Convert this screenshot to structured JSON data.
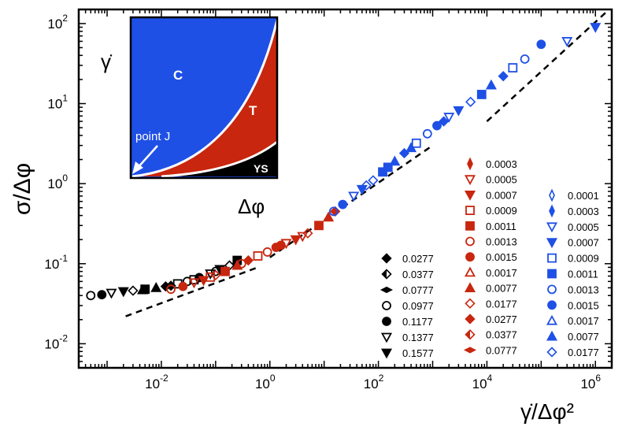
{
  "chart_data": {
    "type": "scatter",
    "x_scale": "log",
    "y_scale": "log",
    "xlim": [
      0.0003,
      2000000
    ],
    "ylim": [
      0.005,
      150
    ],
    "x_ticks": [
      {
        "value": 0.01,
        "base": "10",
        "exp": "-2"
      },
      {
        "value": 1,
        "base": "10",
        "exp": "0"
      },
      {
        "value": 100,
        "base": "10",
        "exp": "2"
      },
      {
        "value": 10000,
        "base": "10",
        "exp": "4"
      },
      {
        "value": 1000000,
        "base": "10",
        "exp": "6"
      }
    ],
    "y_ticks": [
      {
        "value": 0.01,
        "base": "10",
        "exp": "-2"
      },
      {
        "value": 0.1,
        "base": "10",
        "exp": "-1"
      },
      {
        "value": 1,
        "base": "10",
        "exp": "0"
      },
      {
        "value": 10,
        "base": "10",
        "exp": "1"
      },
      {
        "value": 100,
        "base": "10",
        "exp": "2"
      }
    ],
    "xlabel": "γ̇/Δφ²",
    "ylabel": "σ/Δφ",
    "reference_lines": [
      {
        "name": "low-rate-scaling",
        "points": [
          [
            0.0022,
            0.022
          ],
          [
            0.6,
            0.09
          ]
        ],
        "style": "dashed"
      },
      {
        "name": "high-rate-scaling",
        "points": [
          [
            1.0,
            0.12
          ],
          [
            1000,
            3.0
          ]
        ],
        "style": "dashed"
      },
      {
        "name": "upper-scaling",
        "points": [
          [
            10000,
            6.0
          ],
          [
            1600000,
            140
          ]
        ],
        "style": "dashed"
      }
    ],
    "series": [
      {
        "group": "black",
        "legend": [
          "0.0277",
          "0.0377",
          "0.0777",
          "0.0977",
          "0.1177",
          "0.1377",
          "0.1577"
        ],
        "color": "#000000",
        "points": [
          [
            0.0005,
            0.04
          ],
          [
            0.0008,
            0.041
          ],
          [
            0.0012,
            0.043
          ],
          [
            0.002,
            0.045
          ],
          [
            0.003,
            0.046
          ],
          [
            0.005,
            0.048
          ],
          [
            0.008,
            0.05
          ],
          [
            0.012,
            0.052
          ],
          [
            0.02,
            0.056
          ],
          [
            0.03,
            0.06
          ],
          [
            0.05,
            0.067
          ],
          [
            0.08,
            0.075
          ],
          [
            0.12,
            0.085
          ],
          [
            0.18,
            0.095
          ],
          [
            0.25,
            0.11
          ],
          [
            0.0045,
            0.047
          ],
          [
            0.015,
            0.053
          ],
          [
            0.04,
            0.063
          ],
          [
            0.1,
            0.08
          ]
        ]
      },
      {
        "group": "red",
        "legend": [
          "0.0003",
          "0.0005",
          "0.0007",
          "0.0009",
          "0.0011",
          "0.0013",
          "0.0015",
          "0.0017",
          "0.0077",
          "0.0177",
          "0.0277",
          "0.0377",
          "0.0777"
        ],
        "color": "#c8260e",
        "points": [
          [
            0.015,
            0.048
          ],
          [
            0.025,
            0.052
          ],
          [
            0.04,
            0.058
          ],
          [
            0.06,
            0.062
          ],
          [
            0.1,
            0.072
          ],
          [
            0.15,
            0.08
          ],
          [
            0.25,
            0.095
          ],
          [
            0.4,
            0.11
          ],
          [
            0.6,
            0.125
          ],
          [
            0.9,
            0.14
          ],
          [
            1.3,
            0.16
          ],
          [
            2,
            0.18
          ],
          [
            3,
            0.2
          ],
          [
            5,
            0.24
          ],
          [
            8,
            0.3
          ],
          [
            12,
            0.38
          ],
          [
            16,
            0.45
          ],
          [
            0.08,
            0.068
          ],
          [
            0.3,
            0.1
          ],
          [
            1.6,
            0.17
          ],
          [
            4,
            0.22
          ]
        ]
      },
      {
        "group": "blue",
        "legend": [
          "0.0001",
          "0.0003",
          "0.0005",
          "0.0007",
          "0.0009",
          "0.0011",
          "0.0013",
          "0.0015",
          "0.0017",
          "0.0077",
          "0.0177"
        ],
        "color": "#1f50e6",
        "points": [
          [
            15,
            0.45
          ],
          [
            22,
            0.55
          ],
          [
            35,
            0.7
          ],
          [
            50,
            0.85
          ],
          [
            80,
            1.1
          ],
          [
            120,
            1.4
          ],
          [
            200,
            1.9
          ],
          [
            300,
            2.4
          ],
          [
            500,
            3.2
          ],
          [
            800,
            4.2
          ],
          [
            1200,
            5.3
          ],
          [
            2000,
            6.8
          ],
          [
            3000,
            8.2
          ],
          [
            5000,
            10.5
          ],
          [
            8000,
            13
          ],
          [
            12000,
            17
          ],
          [
            20000,
            22
          ],
          [
            30000,
            28
          ],
          [
            50000,
            36
          ],
          [
            100000,
            55
          ],
          [
            300000,
            60
          ],
          [
            1000000,
            90
          ],
          [
            60,
            0.95
          ],
          [
            150,
            1.6
          ],
          [
            400,
            2.8
          ],
          [
            1600,
            6
          ]
        ]
      }
    ],
    "inset": {
      "y_label": "γ̇",
      "x_label": "Δφ",
      "regions": [
        "C",
        "T",
        "YS"
      ],
      "annotation": "point J",
      "colors": {
        "C": "#1f50e6",
        "T": "#c8260e",
        "YS": "#000000"
      }
    },
    "legend_columns": [
      {
        "color": "#000000",
        "entries": [
          {
            "marker": "diamond-filled",
            "label": "0.0277"
          },
          {
            "marker": "diamond-half",
            "label": "0.0377"
          },
          {
            "marker": "diamond-side",
            "label": "0.0777"
          },
          {
            "marker": "circle-open",
            "label": "0.0977"
          },
          {
            "marker": "circle-filled",
            "label": "0.1177"
          },
          {
            "marker": "triangle-down-open",
            "label": "0.1377"
          },
          {
            "marker": "triangle-down-filled",
            "label": "0.1577"
          }
        ]
      },
      {
        "color": "#c8260e",
        "entries": [
          {
            "marker": "diamond-thin",
            "label": "0.0003"
          },
          {
            "marker": "triangle-down-open",
            "label": "0.0005"
          },
          {
            "marker": "triangle-down-filled",
            "label": "0.0007"
          },
          {
            "marker": "square-open",
            "label": "0.0009"
          },
          {
            "marker": "square-filled",
            "label": "0.0011"
          },
          {
            "marker": "circle-open",
            "label": "0.0013"
          },
          {
            "marker": "circle-filled",
            "label": "0.0015"
          },
          {
            "marker": "triangle-up-open",
            "label": "0.0017"
          },
          {
            "marker": "triangle-up-filled",
            "label": "0.0077"
          },
          {
            "marker": "diamond-open",
            "label": "0.0177"
          },
          {
            "marker": "diamond-filled",
            "label": "0.0277"
          },
          {
            "marker": "diamond-half",
            "label": "0.0377"
          },
          {
            "marker": "diamond-side",
            "label": "0.0777"
          }
        ]
      },
      {
        "color": "#1f50e6",
        "entries": [
          {
            "marker": "diamond-thin-open",
            "label": "0.0001"
          },
          {
            "marker": "diamond-thin",
            "label": "0.0003"
          },
          {
            "marker": "triangle-down-open",
            "label": "0.0005"
          },
          {
            "marker": "triangle-down-filled",
            "label": "0.0007"
          },
          {
            "marker": "square-open",
            "label": "0.0009"
          },
          {
            "marker": "square-filled",
            "label": "0.0011"
          },
          {
            "marker": "circle-open",
            "label": "0.0013"
          },
          {
            "marker": "circle-filled",
            "label": "0.0015"
          },
          {
            "marker": "triangle-up-open",
            "label": "0.0017"
          },
          {
            "marker": "triangle-up-filled",
            "label": "0.0077"
          },
          {
            "marker": "diamond-open",
            "label": "0.0177"
          }
        ]
      }
    ]
  }
}
